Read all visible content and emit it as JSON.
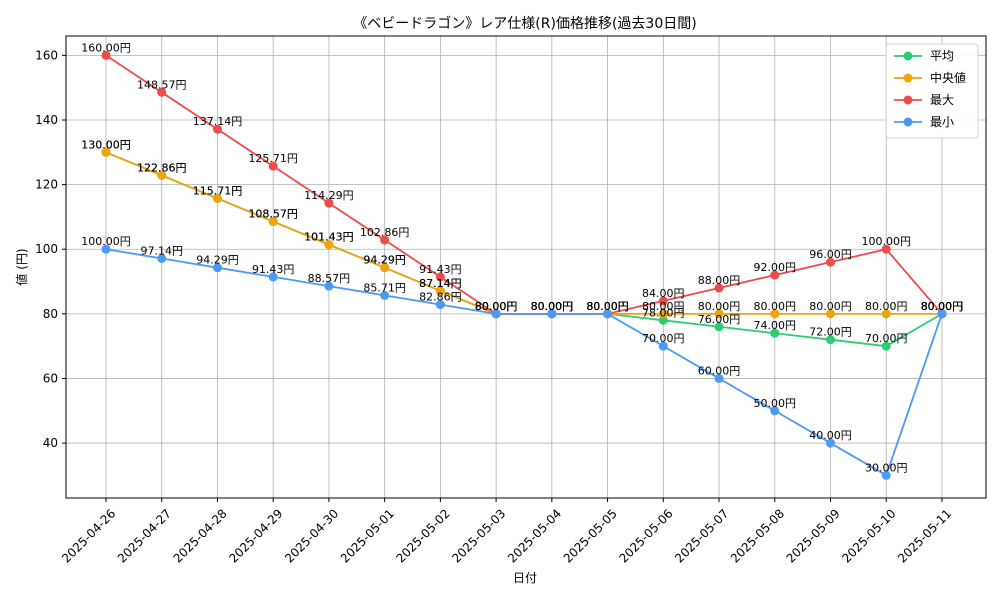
{
  "chart_data": {
    "type": "line",
    "title": "《ベビードラゴン》レア仕様(R)価格推移(過去30日間)",
    "xlabel": "日付",
    "ylabel": "値 (円)",
    "categories": [
      "2025-04-26",
      "2025-04-27",
      "2025-04-28",
      "2025-04-29",
      "2025-04-30",
      "2025-05-01",
      "2025-05-02",
      "2025-05-03",
      "2025-05-04",
      "2025-05-05",
      "2025-05-06",
      "2025-05-07",
      "2025-05-08",
      "2025-05-09",
      "2025-05-10",
      "2025-05-11"
    ],
    "ylim": [
      23,
      166
    ],
    "yticks": [
      40,
      60,
      80,
      100,
      120,
      140,
      160
    ],
    "grid": true,
    "legend_position": "top-right",
    "value_suffix": "円",
    "series": [
      {
        "name": "平均",
        "color": "#2ecc71",
        "values": [
          130.0,
          122.86,
          115.71,
          108.57,
          101.43,
          94.29,
          87.14,
          80.0,
          80.0,
          80.0,
          78.0,
          76.0,
          74.0,
          72.0,
          70.0,
          80.0
        ]
      },
      {
        "name": "中央値",
        "color": "#f0a30a",
        "values": [
          130.0,
          122.86,
          115.71,
          108.57,
          101.43,
          94.29,
          87.14,
          80.0,
          80.0,
          80.0,
          80.0,
          80.0,
          80.0,
          80.0,
          80.0,
          80.0
        ]
      },
      {
        "name": "最大",
        "color": "#ef4b4b",
        "values": [
          160.0,
          148.57,
          137.14,
          125.71,
          114.29,
          102.86,
          91.43,
          80.0,
          80.0,
          80.0,
          84.0,
          88.0,
          92.0,
          96.0,
          100.0,
          80.0
        ]
      },
      {
        "name": "最小",
        "color": "#4a9af5",
        "values": [
          100.0,
          97.14,
          94.29,
          91.43,
          88.57,
          85.71,
          82.86,
          80.0,
          80.0,
          80.0,
          70.0,
          60.0,
          50.0,
          40.0,
          30.0,
          80.0
        ]
      }
    ]
  }
}
